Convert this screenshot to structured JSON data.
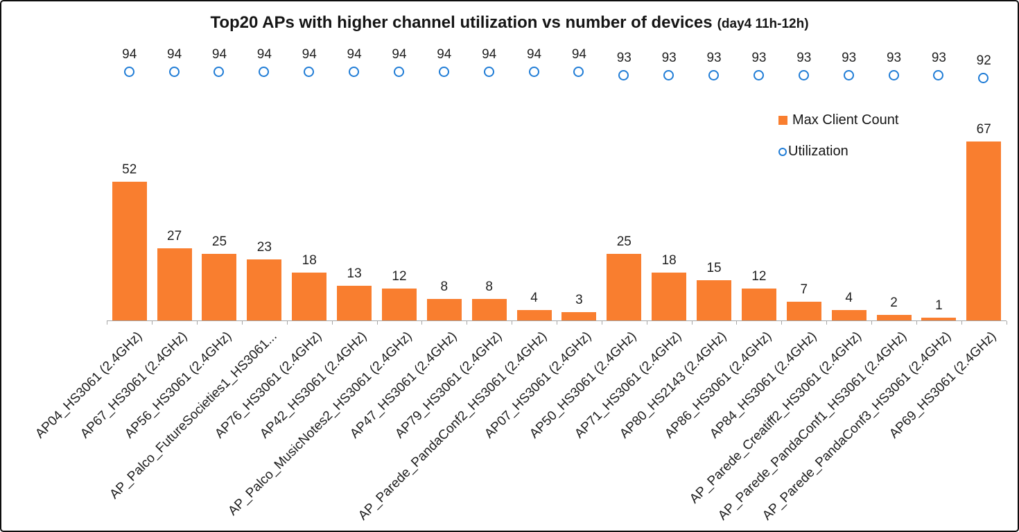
{
  "chart_data": {
    "type": "bar",
    "subtype": "combo-bar-with-scatter-markers",
    "title": "Top20 APs with higher channel utilization vs number of devices",
    "title_suffix": "(day4 11h-12h)",
    "categories": [
      "AP04_HS3061 (2.4GHz)",
      "AP67_HS3061 (2.4GHz)",
      "AP56_HS3061 (2.4GHz)",
      "AP_Palco_FutureSocieties1_HS3061...",
      "AP76_HS3061 (2.4GHz)",
      "AP42_HS3061 (2.4GHz)",
      "AP_Palco_MusicNotes2_HS3061 (2.4GHz)",
      "AP47_HS3061 (2.4GHz)",
      "AP79_HS3061 (2.4GHz)",
      "AP_Parede_PandaConf2_HS3061 (2.4GHz)",
      "AP07_HS3061 (2.4GHz)",
      "AP50_HS3061 (2.4GHz)",
      "AP71_HS3061 (2.4GHz)",
      "AP80_HS2143 (2.4GHz)",
      "AP86_HS3061 (2.4GHz)",
      "AP84_HS3061 (2.4GHz)",
      "AP_Parede_Creatiff2_HS3061 (2.4GHz)",
      "AP_Parede_PandaConf1_HS3061 (2.4GHz)",
      "AP_Parede_PandaConf3_HS3061 (2.4GHz)",
      "AP69_HS3061 (2.4GHz)"
    ],
    "series": [
      {
        "name": "Max Client Count",
        "type": "bar",
        "color": "#F97E2F",
        "values": [
          52,
          27,
          25,
          23,
          18,
          13,
          12,
          8,
          8,
          4,
          3,
          25,
          18,
          15,
          12,
          7,
          4,
          2,
          1,
          67
        ]
      },
      {
        "name": "Utilization",
        "type": "scatter",
        "marker": "circle-outline",
        "color": "#1F7CD6",
        "values": [
          94,
          94,
          94,
          94,
          94,
          94,
          94,
          94,
          94,
          94,
          94,
          93,
          93,
          93,
          93,
          93,
          93,
          93,
          93,
          92
        ]
      }
    ],
    "legend": {
      "position": "upper-right",
      "entries": [
        "Max Client Count",
        "Utilization"
      ]
    },
    "axes": {
      "value_axis_visible": false,
      "gridlines": false,
      "category_axis_line": true,
      "category_label_rotation_deg": 45,
      "data_labels_shown": true
    },
    "colors": {
      "axis": "#A6A6A6",
      "text": "#1F1F1F",
      "background": "#FFFFFF",
      "border": "#0D0D0D"
    }
  }
}
